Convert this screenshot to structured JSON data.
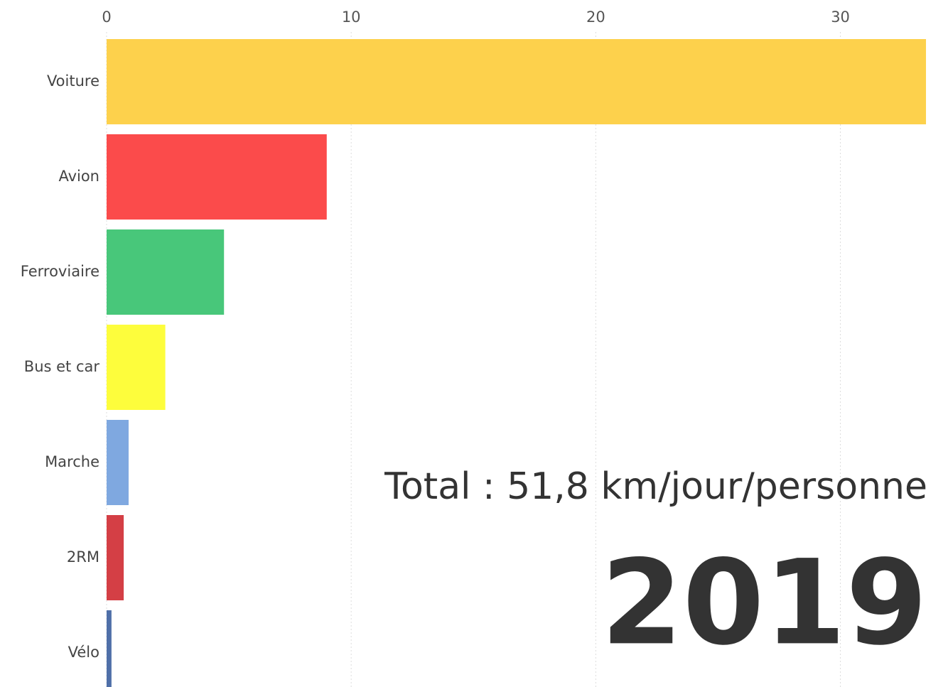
{
  "chart_data": {
    "type": "bar",
    "orientation": "horizontal",
    "categories": [
      "Voiture",
      "Avion",
      "Ferroviaire",
      "Bus et car",
      "Marche",
      "2RM",
      "Vélo"
    ],
    "values": [
      33.5,
      9.0,
      4.8,
      2.4,
      0.9,
      0.7,
      0.2
    ],
    "colors": [
      "#fdd14c",
      "#fb4b4b",
      "#48c77a",
      "#fdfd3c",
      "#7fa8e0",
      "#d43f45",
      "#4f6fa8"
    ],
    "xlim": [
      0,
      34.4
    ],
    "xticks": [
      0,
      10,
      20,
      30
    ],
    "grid": true,
    "annotation": "Total : 51,8 km/jour/personne",
    "period": "2019"
  }
}
